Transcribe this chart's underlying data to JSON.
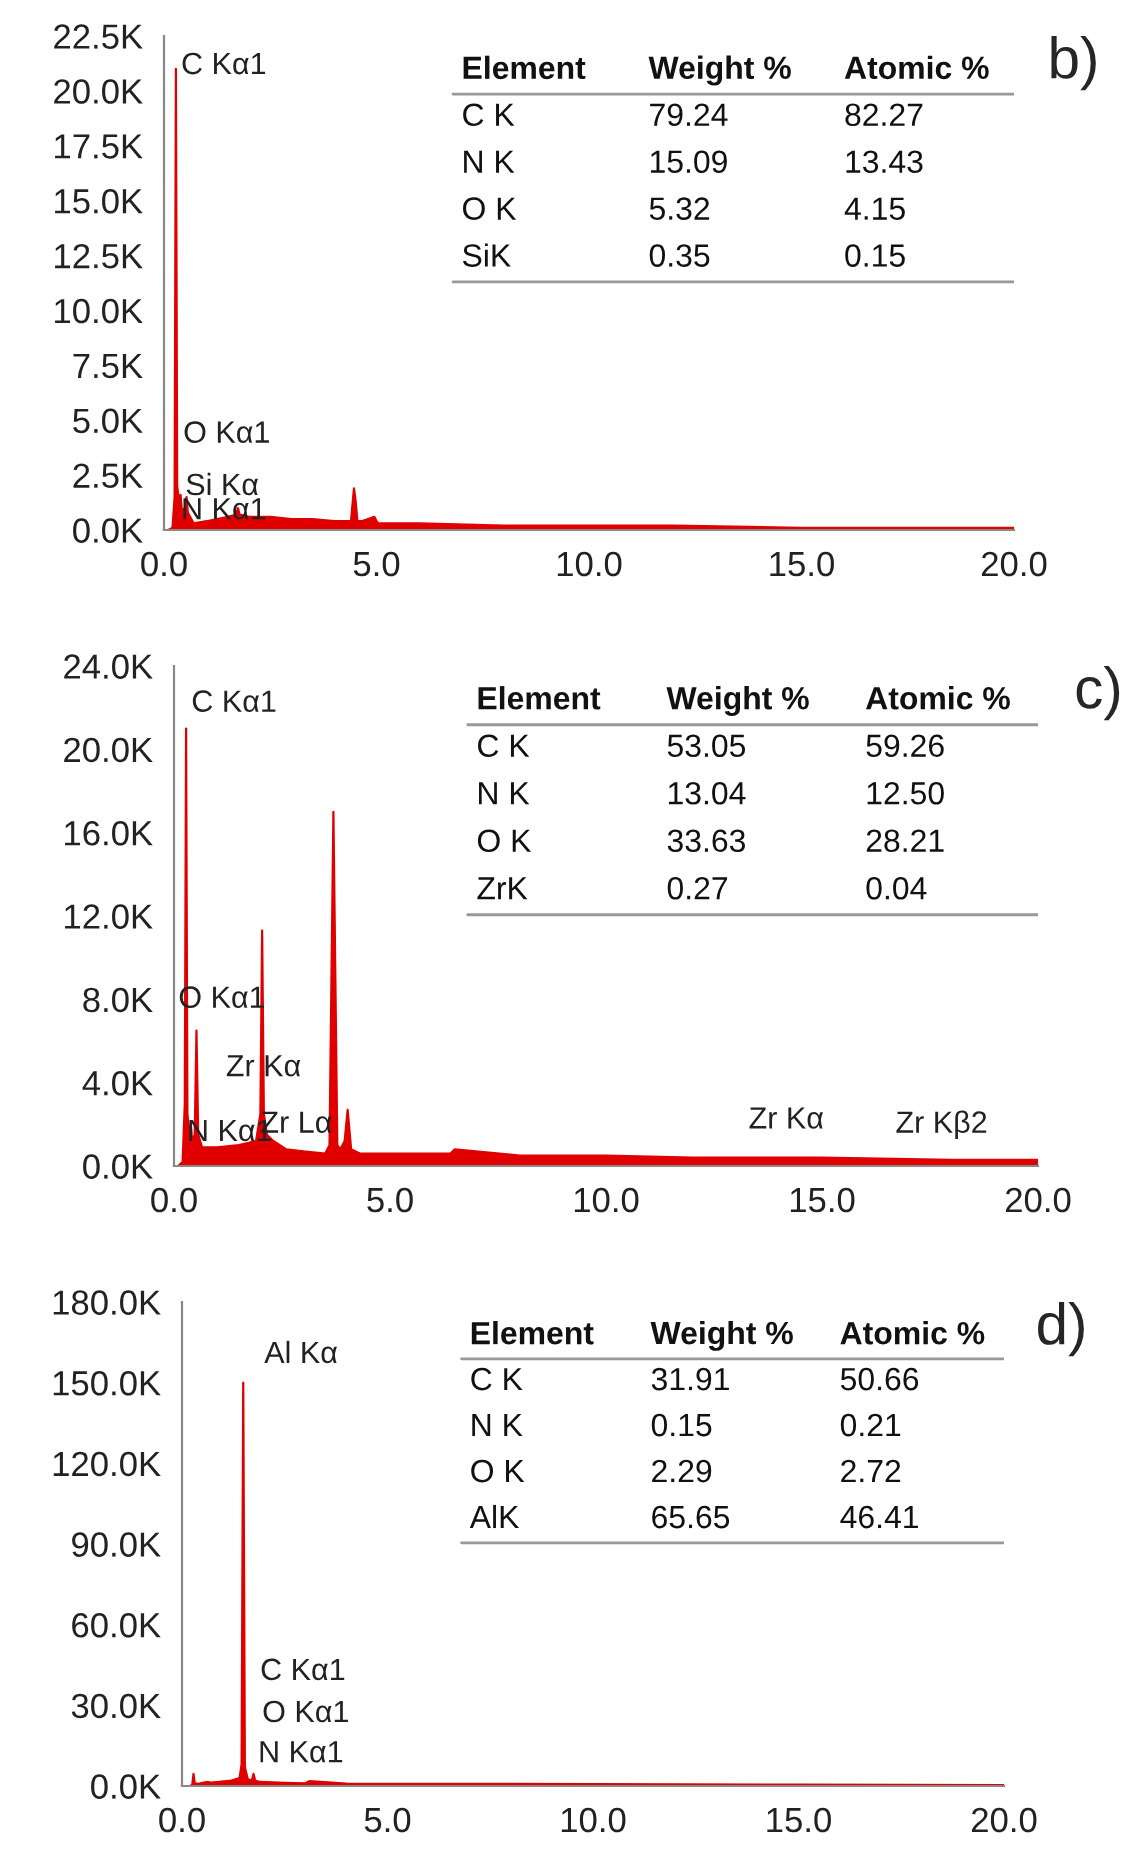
{
  "chart_data": [
    {
      "type": "area",
      "title": "b)",
      "x": [
        0.1,
        0.2,
        0.25,
        0.28,
        0.31,
        0.36,
        0.39,
        0.42,
        0.5,
        0.53,
        0.56,
        0.7,
        1.0,
        1.5,
        1.7,
        1.74,
        1.78,
        2.0,
        2.5,
        3.0,
        3.5,
        4.0,
        4.4,
        4.47,
        4.51,
        4.55,
        4.65,
        4.95,
        5.0,
        5.05,
        6,
        8,
        10,
        12,
        15,
        18,
        20
      ],
      "series": [
        {
          "color": "#e00000",
          "values": [
            0,
            100,
            1500,
            21000,
            2000,
            1200,
            1600,
            900,
            1000,
            1500,
            800,
            300,
            400,
            600,
            700,
            1000,
            700,
            600,
            600,
            500,
            500,
            400,
            400,
            1900,
            1300,
            400,
            400,
            600,
            400,
            300,
            300,
            200,
            200,
            200,
            100,
            100,
            100
          ]
        }
      ],
      "xlim": [
        0,
        20
      ],
      "ylim": [
        0,
        22500
      ],
      "xticks": [
        {
          "value": 0,
          "label": "0.0"
        },
        {
          "value": 5,
          "label": "5.0"
        },
        {
          "value": 10,
          "label": "10.0"
        },
        {
          "value": 15,
          "label": "15.0"
        },
        {
          "value": 20,
          "label": "20.0"
        }
      ],
      "yticks": [
        {
          "value": 0,
          "label": "0.0K"
        },
        {
          "value": 2500,
          "label": "2.5K"
        },
        {
          "value": 5000,
          "label": "5.0K"
        },
        {
          "value": 7500,
          "label": "7.5K"
        },
        {
          "value": 10000,
          "label": "10.0K"
        },
        {
          "value": 12500,
          "label": "12.5K"
        },
        {
          "value": 15000,
          "label": "15.0K"
        },
        {
          "value": 17500,
          "label": "17.5K"
        },
        {
          "value": 20000,
          "label": "20.0K"
        },
        {
          "value": 22500,
          "label": "22.5K"
        }
      ],
      "annotations": [
        "C Kα1",
        "O Kα1",
        "Si Kα",
        "N Kα1",
        "Element",
        "Weight %",
        "Atomic %",
        "C K",
        "79.24",
        "82.27",
        "N K",
        "15.09",
        "13.43",
        "O K",
        "5.32",
        "4.15",
        "SiK",
        "0.35",
        "0.15"
      ]
    },
    {
      "type": "area",
      "title": "c)",
      "x": [
        0.1,
        0.2,
        0.25,
        0.28,
        0.31,
        0.36,
        0.39,
        0.42,
        0.48,
        0.52,
        0.56,
        0.65,
        1.0,
        1.5,
        1.9,
        2.0,
        2.04,
        2.08,
        2.15,
        2.3,
        2.6,
        3.0,
        3.5,
        3.6,
        3.69,
        3.78,
        3.85,
        3.95,
        4.02,
        4.1,
        4.3,
        6.4,
        6.5,
        8,
        10,
        12,
        15,
        18,
        20
      ],
      "series": [
        {
          "color": "#e00000",
          "values": [
            0,
            200,
            3000,
            21000,
            2500,
            1500,
            2000,
            1200,
            1500,
            6500,
            1500,
            900,
            900,
            1000,
            1200,
            2500,
            11300,
            2500,
            1500,
            1200,
            800,
            700,
            600,
            1000,
            17000,
            1000,
            800,
            1200,
            2700,
            800,
            600,
            600,
            800,
            500,
            500,
            400,
            400,
            300,
            300
          ]
        }
      ],
      "xlim": [
        0,
        20
      ],
      "ylim": [
        0,
        24000
      ],
      "xticks": [
        {
          "value": 0,
          "label": "0.0"
        },
        {
          "value": 5,
          "label": "5.0"
        },
        {
          "value": 10,
          "label": "10.0"
        },
        {
          "value": 15,
          "label": "15.0"
        },
        {
          "value": 20,
          "label": "20.0"
        }
      ],
      "yticks": [
        {
          "value": 0,
          "label": "0.0K"
        },
        {
          "value": 4000,
          "label": "4.0K"
        },
        {
          "value": 8000,
          "label": "8.0K"
        },
        {
          "value": 12000,
          "label": "12.0K"
        },
        {
          "value": 16000,
          "label": "16.0K"
        },
        {
          "value": 20000,
          "label": "20.0K"
        },
        {
          "value": 24000,
          "label": "24.0K"
        }
      ],
      "annotations": [
        "C Kα1",
        "O Kα1",
        "Zr Kα",
        "N Kα1",
        "Zr Lα",
        "Zr Kα",
        "Zr Kβ2",
        "Element",
        "Weight %",
        "Atomic %",
        "C K",
        "53.05",
        "59.26",
        "N K",
        "13.04",
        "12.50",
        "O K",
        "33.63",
        "28.21",
        "ZrK",
        "0.27",
        "0.04"
      ]
    },
    {
      "type": "area",
      "title": "d)",
      "x": [
        0.2,
        0.25,
        0.28,
        0.31,
        0.4,
        0.5,
        0.6,
        0.7,
        0.9,
        1.2,
        1.4,
        1.45,
        1.49,
        1.53,
        1.6,
        1.7,
        1.74,
        1.78,
        1.9,
        2.5,
        3.0,
        3.1,
        4,
        6.5,
        10,
        15,
        20
      ],
      "series": [
        {
          "color": "#e00000",
          "values": [
            0,
            500,
            4500,
            1000,
            800,
            1200,
            1500,
            1300,
            1500,
            2000,
            3000,
            8000,
            150000,
            7000,
            2500,
            2000,
            4500,
            2000,
            1500,
            1200,
            1000,
            1800,
            900,
            800,
            700,
            500,
            300
          ]
        }
      ],
      "xlim": [
        0,
        20
      ],
      "ylim": [
        0,
        180000
      ],
      "xticks": [
        {
          "value": 0,
          "label": "0.0"
        },
        {
          "value": 5,
          "label": "5.0"
        },
        {
          "value": 10,
          "label": "10.0"
        },
        {
          "value": 15,
          "label": "15.0"
        },
        {
          "value": 20,
          "label": "20.0"
        }
      ],
      "yticks": [
        {
          "value": 0,
          "label": "0.0K"
        },
        {
          "value": 30000,
          "label": "30.0K"
        },
        {
          "value": 60000,
          "label": "60.0K"
        },
        {
          "value": 90000,
          "label": "90.0K"
        },
        {
          "value": 120000,
          "label": "120.0K"
        },
        {
          "value": 150000,
          "label": "150.0K"
        },
        {
          "value": 180000,
          "label": "180.0K"
        }
      ],
      "annotations": [
        "Al Kα",
        "C Kα1",
        "O Kα1",
        "N Kα1",
        "Element",
        "Weight %",
        "Atomic %",
        "C K",
        "31.91",
        "50.66",
        "N K",
        "0.15",
        "0.21",
        "O K",
        "2.29",
        "2.72",
        "AlK",
        "65.65",
        "46.41"
      ]
    }
  ]
}
